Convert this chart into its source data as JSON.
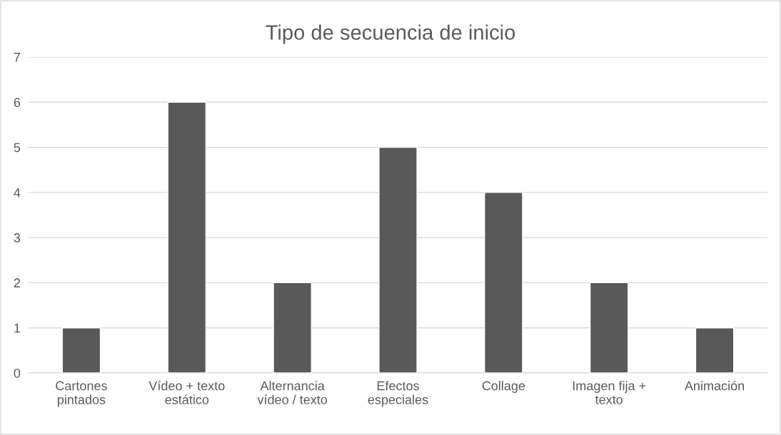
{
  "chart_data": {
    "type": "bar",
    "title": "Tipo de secuencia de inicio",
    "categories": [
      "Cartones pintados",
      "Vídeo + texto estático",
      "Alternancia vídeo / texto",
      "Efectos especiales",
      "Collage",
      "Imagen fija + texto",
      "Animación"
    ],
    "values": [
      1,
      6,
      2,
      5,
      4,
      2,
      1
    ],
    "color": "#595959",
    "ylim": [
      0,
      7
    ],
    "yticks": [
      0,
      1,
      2,
      3,
      4,
      5,
      6,
      7
    ],
    "grid": "y",
    "legend": false
  }
}
